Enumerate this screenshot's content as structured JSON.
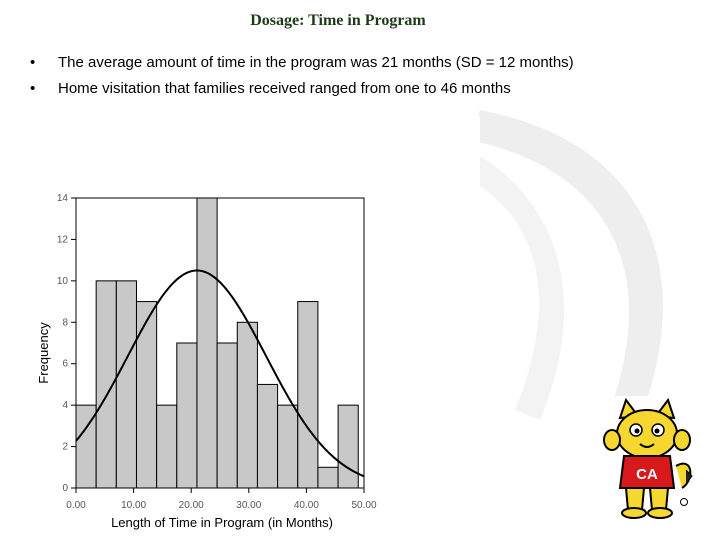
{
  "slide": {
    "title": "Dosage:  Time in Program",
    "bullets": [
      "The average amount of time in the program was 21 months (SD = 12 months)",
      "Home visitation that families received ranged from one to 46 months"
    ],
    "bullet_glyph": "•",
    "logo_icon": "cat-mascot-icon",
    "logo_text": "CA",
    "accent_color": "#1f3a18"
  },
  "chart_data": {
    "type": "bar",
    "xlabel": "Length of Time in Program (in Months)",
    "ylabel": "Frequency",
    "xlim": [
      0,
      50
    ],
    "ylim": [
      0,
      14
    ],
    "x_ticks": [
      "0.00",
      "10.00",
      "20.00",
      "30.00",
      "40.00",
      "50.00"
    ],
    "y_ticks": [
      "0",
      "2",
      "4",
      "6",
      "8",
      "10",
      "12",
      "14"
    ],
    "bin_width": 3.5,
    "bins": [
      {
        "start": 0.0,
        "end": 3.5,
        "count": 4
      },
      {
        "start": 3.5,
        "end": 7.0,
        "count": 10
      },
      {
        "start": 7.0,
        "end": 10.5,
        "count": 10
      },
      {
        "start": 10.5,
        "end": 14.0,
        "count": 9
      },
      {
        "start": 14.0,
        "end": 17.5,
        "count": 4
      },
      {
        "start": 17.5,
        "end": 21.0,
        "count": 7
      },
      {
        "start": 21.0,
        "end": 24.5,
        "count": 14
      },
      {
        "start": 24.5,
        "end": 28.0,
        "count": 7
      },
      {
        "start": 28.0,
        "end": 31.5,
        "count": 8
      },
      {
        "start": 31.5,
        "end": 35.0,
        "count": 5
      },
      {
        "start": 35.0,
        "end": 38.5,
        "count": 4
      },
      {
        "start": 38.5,
        "end": 42.0,
        "count": 9
      },
      {
        "start": 42.0,
        "end": 45.5,
        "count": 1
      },
      {
        "start": 45.5,
        "end": 49.0,
        "count": 4
      }
    ],
    "normal_curve": {
      "mean": 21,
      "sd": 12,
      "peak": 10.5
    },
    "bar_fill": "#c8c8c8",
    "bar_stroke": "#000000",
    "grid": false,
    "legend": "none"
  }
}
